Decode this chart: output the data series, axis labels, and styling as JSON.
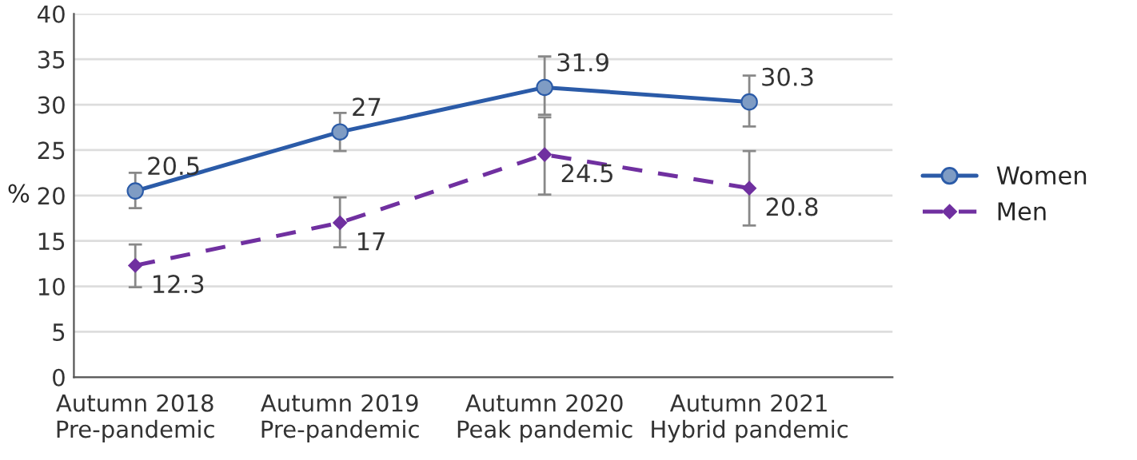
{
  "chart_data": {
    "type": "line",
    "ylabel": "%",
    "categories": [
      "Autumn 2018\nPre-pandemic",
      "Autumn 2019\nPre-pandemic",
      "Autumn 2020\nPeak pandemic",
      "Autumn 2021\nHybrid pandemic"
    ],
    "series": [
      {
        "name": "Women",
        "color": "#2b5ba8",
        "values": [
          20.5,
          27,
          31.9,
          30.3
        ],
        "errors": [
          [
            18.6,
            22.5
          ],
          [
            24.9,
            29.1
          ],
          [
            28.9,
            35.3
          ],
          [
            27.6,
            33.2
          ]
        ],
        "marker": "circle",
        "line_style": "solid"
      },
      {
        "name": "Men",
        "color": "#7030a0",
        "values": [
          12.3,
          17,
          24.5,
          20.8
        ],
        "errors": [
          [
            9.9,
            14.6
          ],
          [
            14.3,
            19.8
          ],
          [
            20.1,
            28.6
          ],
          [
            16.7,
            24.9
          ]
        ],
        "marker": "diamond",
        "line_style": "dashed"
      }
    ],
    "ylim": [
      0,
      40
    ],
    "yticks": [
      0,
      5,
      10,
      15,
      20,
      25,
      30,
      35,
      40
    ],
    "grid": "y",
    "legend": "right",
    "data_labels": true
  }
}
